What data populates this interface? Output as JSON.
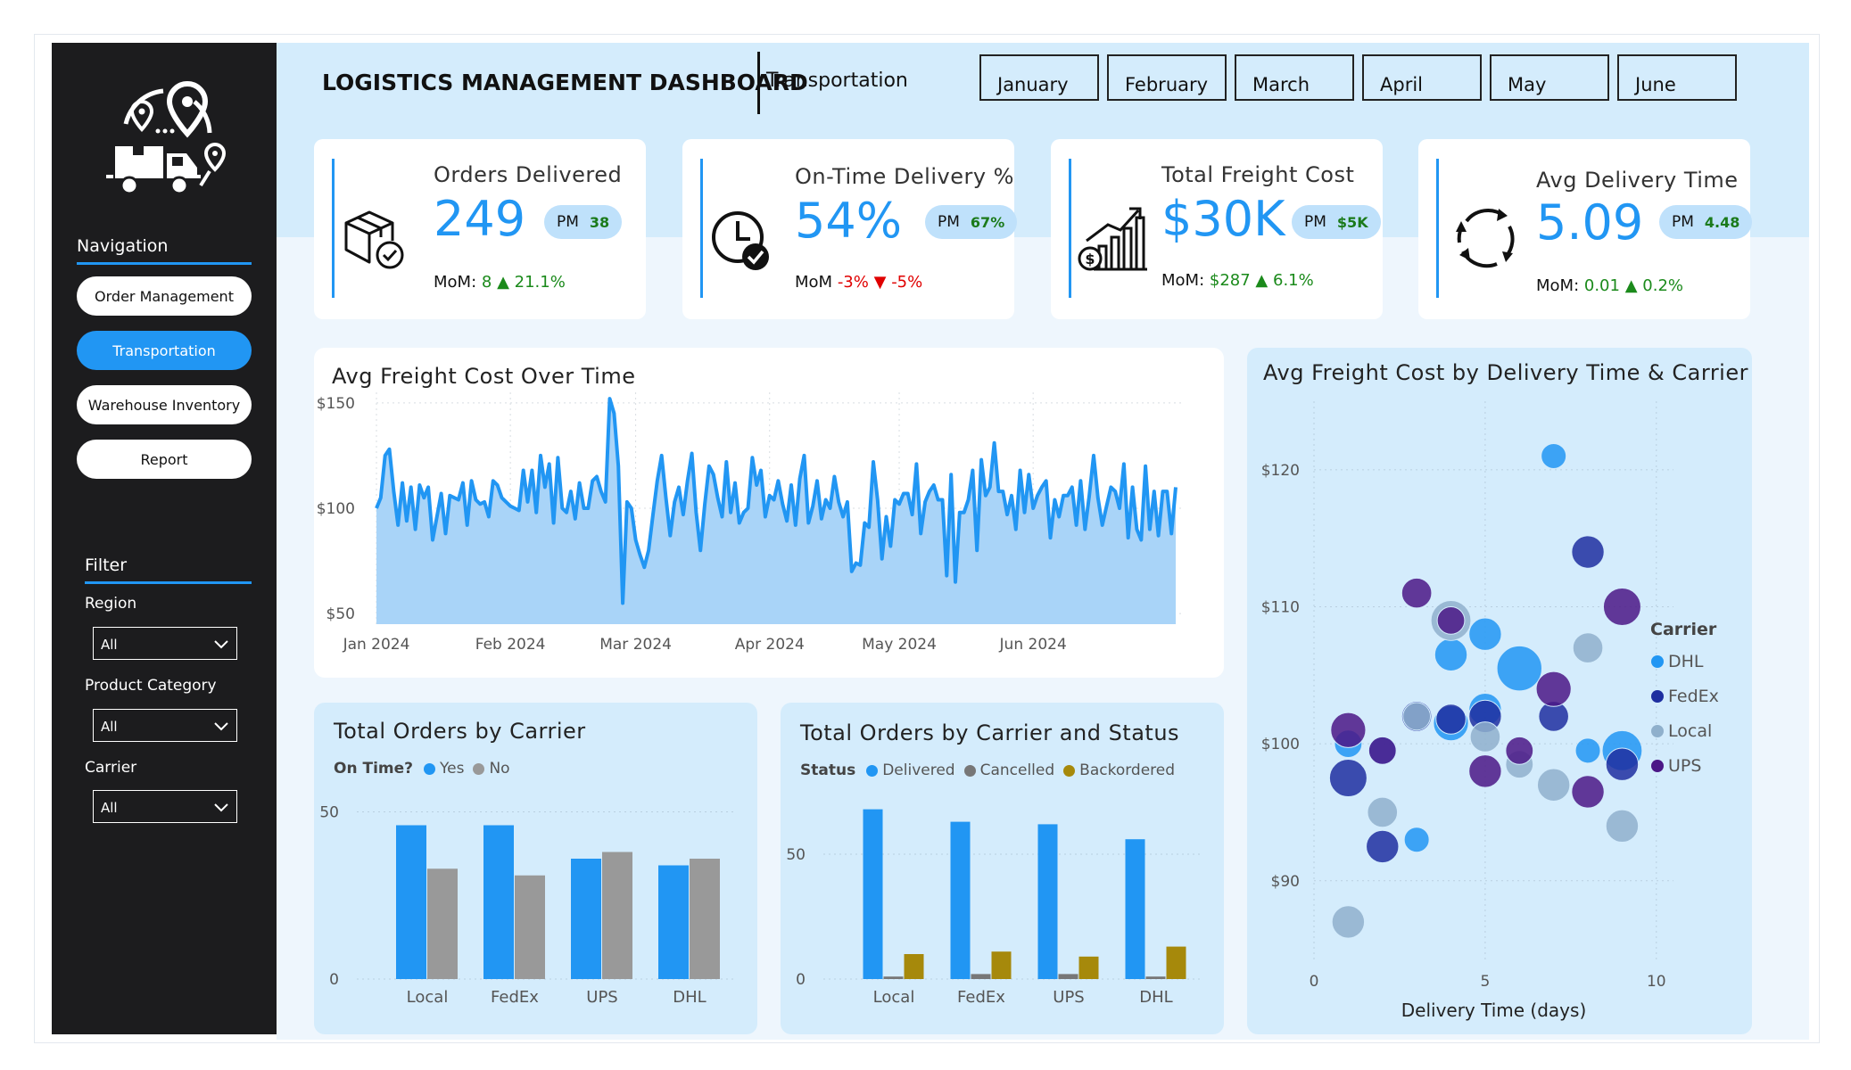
{
  "sidebar": {
    "navigation_title": "Navigation",
    "nav_items": [
      "Order Management",
      "Transportation",
      "Warehouse Inventory",
      "Report"
    ],
    "active_item": "Transportation",
    "filter_title": "Filter",
    "filters": [
      {
        "label": "Region",
        "value": "All"
      },
      {
        "label": "Product Category",
        "value": "All"
      },
      {
        "label": "Carrier",
        "value": "All"
      }
    ]
  },
  "header": {
    "title": "LOGISTICS MANAGEMENT DASHBOARD",
    "subtitle": "Transportation",
    "months": [
      "January",
      "February",
      "March",
      "April",
      "May",
      "June"
    ]
  },
  "kpis": [
    {
      "title": "Orders Delivered",
      "value": "249",
      "pm_label": "PM",
      "pm_value": "38",
      "mom_label": "MoM:",
      "mom_abs": "8",
      "mom_pct": "21.1%",
      "direction": "up",
      "icon": "package-check-icon"
    },
    {
      "title": "On-Time Delivery %",
      "value": "54%",
      "pm_label": "PM",
      "pm_value": "67%",
      "mom_label": "MoM",
      "mom_abs": "-3%",
      "mom_pct": "-5%",
      "direction": "down",
      "icon": "clock-check-icon"
    },
    {
      "title": "Total Freight Cost",
      "value": "$30K",
      "pm_label": "PM",
      "pm_value": "$5K",
      "mom_label": "MoM:",
      "mom_abs": "$287",
      "mom_pct": "6.1%",
      "direction": "up",
      "icon": "growth-chart-dollar-icon"
    },
    {
      "title": "Avg Delivery Time",
      "value": "5.09",
      "pm_label": "PM",
      "pm_value": "4.48",
      "mom_label": "MoM:",
      "mom_abs": "0.01",
      "mom_pct": "0.2%",
      "direction": "up",
      "icon": "cycle-arrows-icon"
    }
  ],
  "colors": {
    "accent": "#2196f3",
    "area_fill": "#a9d4f8",
    "grey": "#999999",
    "gold": "#a6890b",
    "dhl": "#2196f3",
    "fedex": "#1e2fa0",
    "local": "#8fb0cc",
    "ups": "#4b1786"
  },
  "chart_data": [
    {
      "id": "freight_over_time",
      "type": "area",
      "title": "Avg Freight Cost Over Time",
      "y_ticks": [
        "$50",
        "$100",
        "$150"
      ],
      "x_ticks": [
        "Jan 2024",
        "Feb 2024",
        "Mar 2024",
        "Apr 2024",
        "May 2024",
        "Jun 2024"
      ],
      "ylim": [
        45,
        155
      ],
      "x_start": "2024-01-01",
      "x_tick_dates": [
        "2024-01-01",
        "2024-02-01",
        "2024-03-01",
        "2024-04-01",
        "2024-05-01",
        "2024-06-01"
      ],
      "values": [
        100,
        105,
        125,
        128,
        108,
        92,
        112,
        94,
        110,
        90,
        111,
        105,
        110,
        85,
        96,
        107,
        88,
        106,
        105,
        104,
        112,
        92,
        113,
        104,
        102,
        103,
        96,
        113,
        111,
        105,
        103,
        101,
        100,
        99,
        118,
        103,
        118,
        98,
        125,
        110,
        121,
        93,
        124,
        100,
        98,
        108,
        95,
        112,
        100,
        100,
        113,
        115,
        108,
        103,
        152,
        145,
        120,
        55,
        103,
        100,
        85,
        78,
        72,
        80,
        97,
        113,
        125,
        105,
        87,
        103,
        110,
        97,
        113,
        126,
        98,
        80,
        102,
        120,
        116,
        105,
        96,
        122,
        98,
        112,
        93,
        98,
        100,
        124,
        111,
        118,
        96,
        106,
        104,
        113,
        102,
        94,
        111,
        92,
        114,
        125,
        93,
        101,
        113,
        95,
        104,
        100,
        115,
        103,
        96,
        103,
        70,
        74,
        73,
        93,
        91,
        122,
        104,
        76,
        96,
        82,
        104,
        102,
        107,
        107,
        97,
        121,
        88,
        103,
        108,
        111,
        104,
        104,
        68,
        116,
        65,
        98,
        98,
        104,
        118,
        80,
        123,
        106,
        110,
        131,
        108,
        108,
        97,
        106,
        90,
        118,
        98,
        116,
        100,
        106,
        110,
        113,
        86,
        104,
        96,
        106,
        106,
        110,
        92,
        113,
        90,
        106,
        125,
        105,
        92,
        101,
        110,
        108,
        100,
        121,
        86,
        110,
        90,
        85,
        120,
        90,
        108,
        87,
        108,
        108,
        88,
        110
      ],
      "xlabel": "",
      "ylabel": ""
    },
    {
      "id": "orders_by_carrier",
      "type": "bar",
      "title": "Total Orders by Carrier",
      "legend_title": "On Time?",
      "categories": [
        "Local",
        "FedEx",
        "UPS",
        "DHL"
      ],
      "series": [
        {
          "name": "Yes",
          "color": "#2196f3",
          "values": [
            46,
            46,
            36,
            34
          ]
        },
        {
          "name": "No",
          "color": "#999999",
          "values": [
            33,
            31,
            38,
            36
          ]
        }
      ],
      "y_ticks": [
        0,
        50
      ],
      "ylim": [
        0,
        56
      ],
      "xlabel": "",
      "ylabel": ""
    },
    {
      "id": "orders_by_carrier_status",
      "type": "bar",
      "title": "Total Orders by Carrier and Status",
      "legend_title": "Status",
      "categories": [
        "Local",
        "FedEx",
        "UPS",
        "DHL"
      ],
      "series": [
        {
          "name": "Delivered",
          "color": "#2196f3",
          "values": [
            68,
            63,
            62,
            56
          ]
        },
        {
          "name": "Cancelled",
          "color": "#777777",
          "values": [
            1,
            2,
            2,
            1
          ]
        },
        {
          "name": "Backordered",
          "color": "#a6890b",
          "values": [
            10,
            11,
            9,
            13
          ]
        }
      ],
      "y_ticks": [
        0,
        50
      ],
      "ylim": [
        0,
        75
      ],
      "xlabel": "",
      "ylabel": ""
    },
    {
      "id": "freight_by_delivery_carrier",
      "type": "scatter",
      "title": "Avg Freight Cost by Delivery Time & Carrier",
      "legend_title": "Carrier",
      "xlabel": "Delivery Time (days)",
      "ylabel": "",
      "x_ticks": [
        0,
        5,
        10
      ],
      "y_ticks": [
        90,
        100,
        110,
        120
      ],
      "y_tick_labels": [
        "$90",
        "$100",
        "$110",
        "$120"
      ],
      "xlim": [
        0,
        10.5
      ],
      "ylim": [
        84,
        125
      ],
      "series": [
        {
          "name": "DHL",
          "color": "#2196f3",
          "points": [
            [
              7,
              121,
              1.0
            ],
            [
              4,
              101.5,
              1.4
            ],
            [
              5,
              102.5,
              1.3
            ],
            [
              4,
              106.5,
              1.3
            ],
            [
              5,
              108,
              1.3
            ],
            [
              6,
              105.5,
              1.8
            ],
            [
              1,
              100,
              1.1
            ],
            [
              2,
              99.5,
              1.1
            ],
            [
              3,
              93,
              1.0
            ],
            [
              8,
              99.5,
              1.0
            ],
            [
              9,
              99.5,
              1.6
            ]
          ]
        },
        {
          "name": "FedEx",
          "color": "#1e2fa0",
          "points": [
            [
              8,
              114,
              1.3
            ],
            [
              3,
              102,
              1.2
            ],
            [
              4,
              101.8,
              1.2
            ],
            [
              5,
              102,
              1.3
            ],
            [
              7,
              102,
              1.2
            ],
            [
              1,
              97.5,
              1.5
            ],
            [
              2,
              92.5,
              1.3
            ],
            [
              9,
              98.5,
              1.3
            ]
          ]
        },
        {
          "name": "Local",
          "color": "#8fb0cc",
          "points": [
            [
              4,
              109,
              1.6
            ],
            [
              8,
              107,
              1.2
            ],
            [
              3,
              102,
              1.1
            ],
            [
              5,
              100.5,
              1.2
            ],
            [
              6,
              98.5,
              1.1
            ],
            [
              7,
              97,
              1.3
            ],
            [
              2,
              95,
              1.2
            ],
            [
              9,
              94,
              1.3
            ],
            [
              1,
              87,
              1.3
            ]
          ]
        },
        {
          "name": "UPS",
          "color": "#4b1786",
          "points": [
            [
              3,
              111,
              1.2
            ],
            [
              4,
              109,
              1.1
            ],
            [
              9,
              110,
              1.5
            ],
            [
              7,
              104,
              1.4
            ],
            [
              1,
              101,
              1.4
            ],
            [
              2,
              99.5,
              1.1
            ],
            [
              6,
              99.5,
              1.1
            ],
            [
              5,
              98,
              1.3
            ],
            [
              8,
              96.5,
              1.3
            ]
          ]
        }
      ]
    }
  ]
}
